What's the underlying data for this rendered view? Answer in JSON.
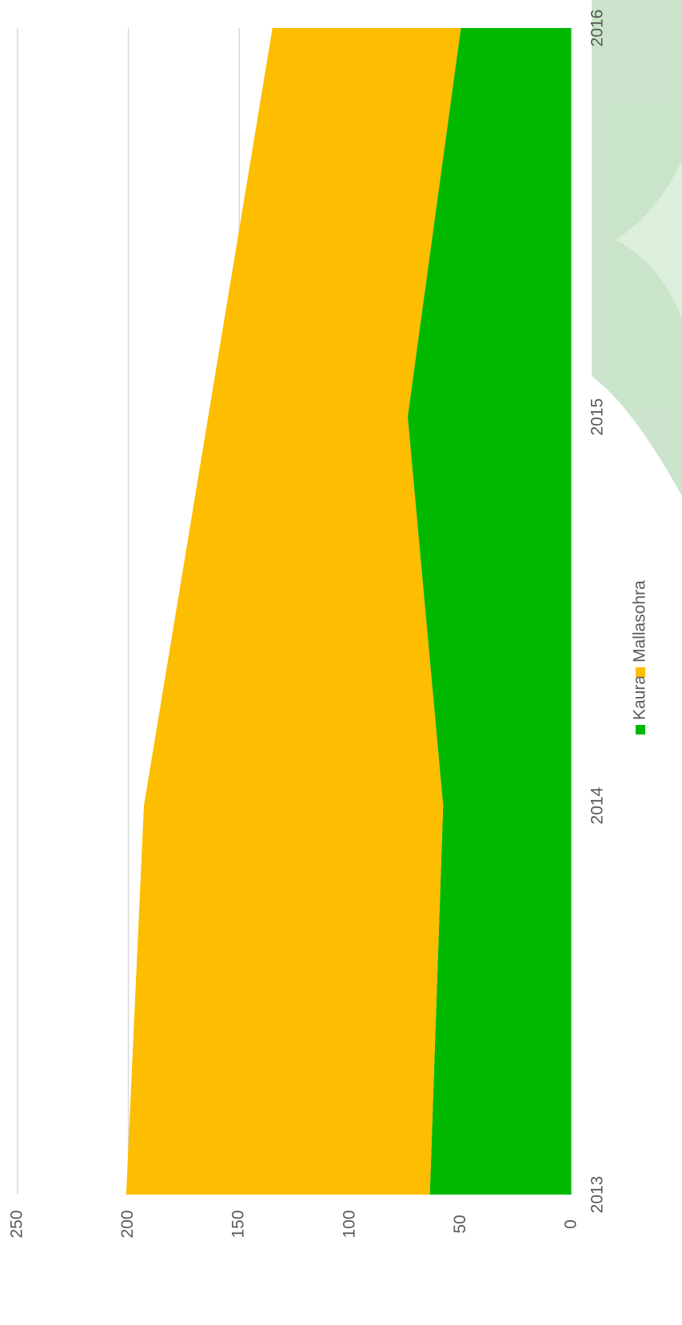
{
  "chart_data": {
    "type": "area",
    "stacked": true,
    "orientation": "rotated",
    "categories": [
      "2013",
      "2014",
      "2015",
      "2016"
    ],
    "series": [
      {
        "name": "Kaura",
        "color": "#00b800",
        "values": [
          64,
          58,
          74,
          50
        ]
      },
      {
        "name": "Mallasohra",
        "color": "#fdbd00",
        "values": [
          137,
          135,
          90,
          85
        ]
      }
    ],
    "ylim": [
      0,
      250
    ],
    "yticks": [
      0,
      50,
      100,
      150,
      200,
      250
    ],
    "grid": true
  }
}
